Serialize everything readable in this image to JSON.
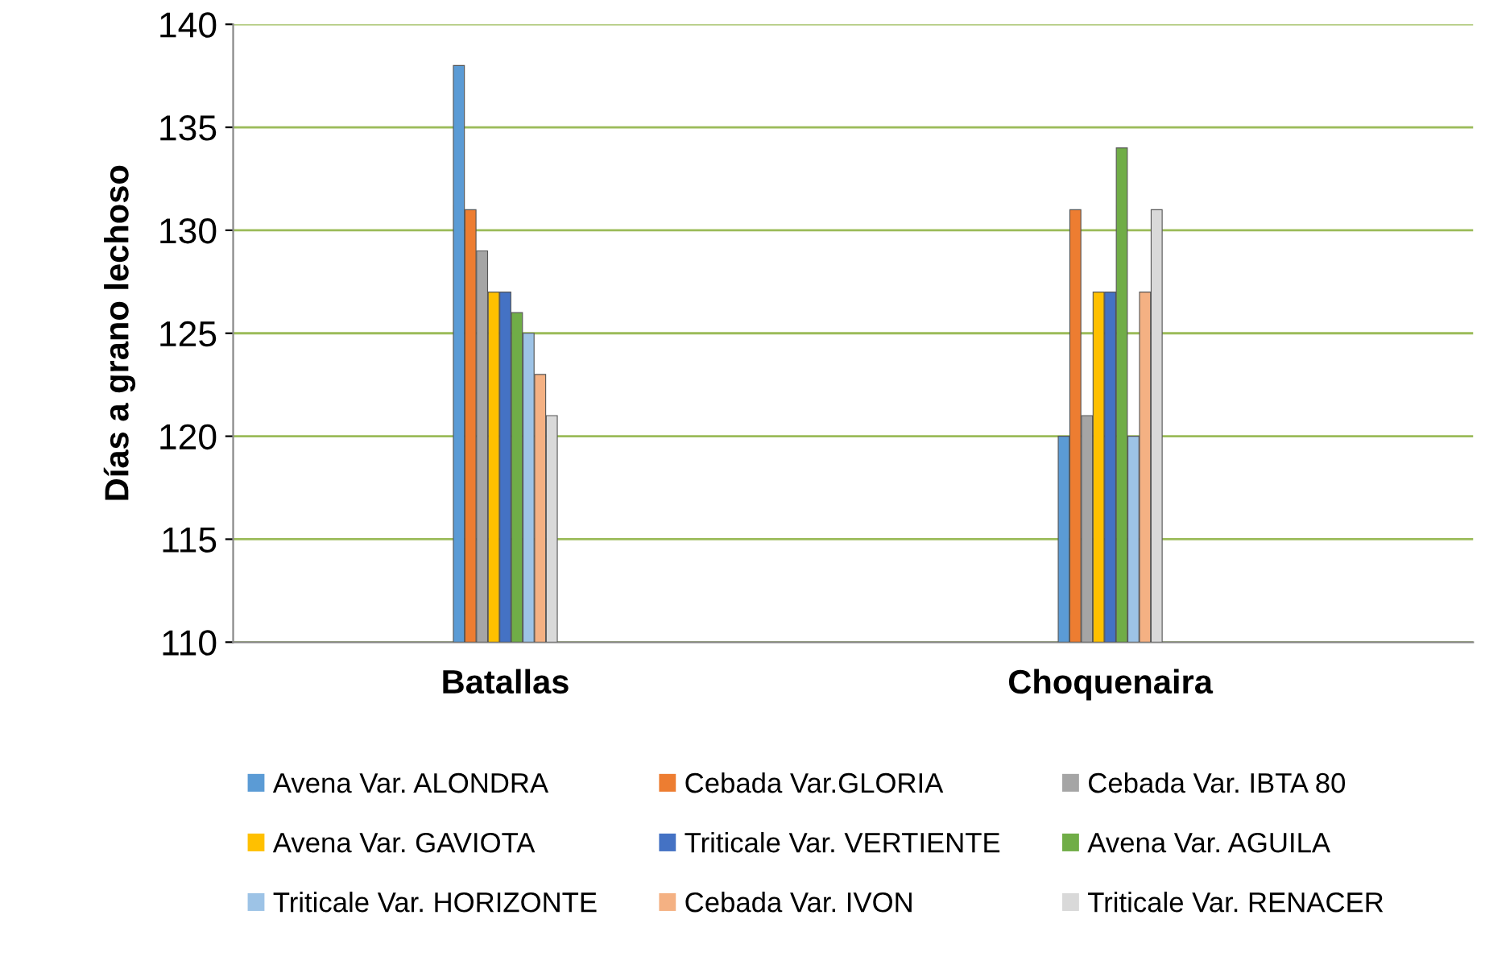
{
  "chart_data": {
    "type": "bar",
    "ylabel": "Días a grano lechoso",
    "categories": [
      "Batallas",
      "Choquenaira"
    ],
    "series": [
      {
        "name": "Avena Var. ALONDRA",
        "color": "#5b9bd5",
        "values": [
          138,
          120
        ]
      },
      {
        "name": "Cebada Var.GLORIA",
        "color": "#ed7d31",
        "values": [
          131,
          131
        ]
      },
      {
        "name": "Cebada Var. IBTA 80",
        "color": "#a5a5a5",
        "values": [
          129,
          121
        ]
      },
      {
        "name": "Avena Var. GAVIOTA",
        "color": "#ffc000",
        "values": [
          127,
          127
        ]
      },
      {
        "name": "Triticale Var. VERTIENTE",
        "color": "#4472c4",
        "values": [
          127,
          127
        ]
      },
      {
        "name": "Avena Var. AGUILA",
        "color": "#70ad47",
        "values": [
          126,
          134
        ]
      },
      {
        "name": "Triticale Var. HORIZONTE",
        "color": "#9dc3e6",
        "values": [
          125,
          120
        ]
      },
      {
        "name": "Cebada Var. IVON",
        "color": "#f4b183",
        "values": [
          123,
          127
        ]
      },
      {
        "name": "Triticale Var. RENACER",
        "color": "#d9d9d9",
        "values": [
          121,
          131
        ]
      }
    ],
    "ylim": [
      110,
      140
    ],
    "yticks": [
      110,
      115,
      120,
      125,
      130,
      135,
      140
    ],
    "grid": "y",
    "legend": "bottom"
  }
}
